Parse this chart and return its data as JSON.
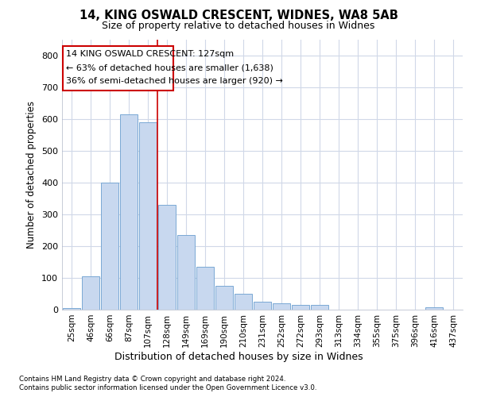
{
  "title1": "14, KING OSWALD CRESCENT, WIDNES, WA8 5AB",
  "title2": "Size of property relative to detached houses in Widnes",
  "xlabel": "Distribution of detached houses by size in Widnes",
  "ylabel": "Number of detached properties",
  "categories": [
    "25sqm",
    "46sqm",
    "66sqm",
    "87sqm",
    "107sqm",
    "128sqm",
    "149sqm",
    "169sqm",
    "190sqm",
    "210sqm",
    "231sqm",
    "252sqm",
    "272sqm",
    "293sqm",
    "313sqm",
    "334sqm",
    "355sqm",
    "375sqm",
    "396sqm",
    "416sqm",
    "437sqm"
  ],
  "values": [
    5,
    105,
    400,
    615,
    590,
    330,
    235,
    135,
    75,
    50,
    25,
    20,
    15,
    15,
    0,
    0,
    0,
    0,
    0,
    7,
    0
  ],
  "bar_color": "#c8d8ef",
  "bar_edge_color": "#7aa8d4",
  "annotation_line1": "14 KING OSWALD CRESCENT: 127sqm",
  "annotation_line2": "← 63% of detached houses are smaller (1,638)",
  "annotation_line3": "36% of semi-detached houses are larger (920) →",
  "annotation_box_color": "#ffffff",
  "annotation_box_edge": "#cc0000",
  "vline_color": "#cc0000",
  "vline_x": 4.5,
  "ylim": [
    0,
    850
  ],
  "yticks": [
    0,
    100,
    200,
    300,
    400,
    500,
    600,
    700,
    800
  ],
  "bg_color": "#ffffff",
  "plot_bg_color": "#ffffff",
  "grid_color": "#d0d8e8",
  "footnote1": "Contains HM Land Registry data © Crown copyright and database right 2024.",
  "footnote2": "Contains public sector information licensed under the Open Government Licence v3.0."
}
